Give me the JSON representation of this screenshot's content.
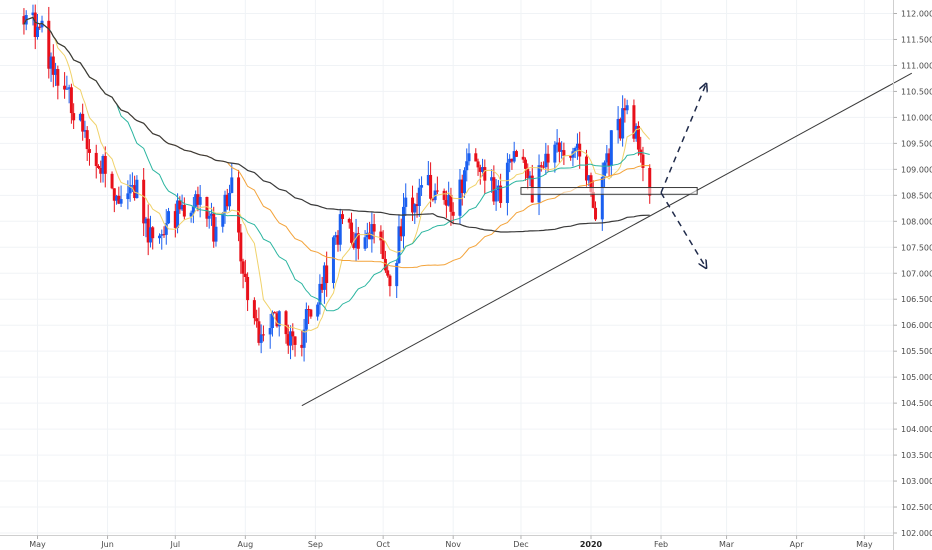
{
  "chart_data": {
    "type": "candlestick",
    "y_axis": {
      "range": [
        102.0,
        112.3
      ],
      "ticks": [
        "112.000",
        "111.500",
        "111.000",
        "110.500",
        "110.000",
        "109.500",
        "109.000",
        "108.500",
        "108.000",
        "107.500",
        "107.000",
        "106.500",
        "106.000",
        "105.500",
        "105.000",
        "104.500",
        "104.000",
        "103.500",
        "103.000",
        "102.500",
        "102.000"
      ]
    },
    "x_axis": {
      "labels": [
        {
          "text": "May",
          "bold": false
        },
        {
          "text": "Jun",
          "bold": false
        },
        {
          "text": "Jul",
          "bold": false
        },
        {
          "text": "Aug",
          "bold": false
        },
        {
          "text": "Sep",
          "bold": false
        },
        {
          "text": "Oct",
          "bold": false
        },
        {
          "text": "Nov",
          "bold": false
        },
        {
          "text": "Dec",
          "bold": false
        },
        {
          "text": "2020",
          "bold": true
        },
        {
          "text": "Feb",
          "bold": false
        },
        {
          "text": "Mar",
          "bold": false
        },
        {
          "text": "Apr",
          "bold": false
        },
        {
          "text": "May",
          "bold": false
        }
      ]
    },
    "grid": true,
    "colors": {
      "up": "#1a5ff0",
      "down": "#e8101a",
      "ma_fast": "#f0d26a",
      "ma_mid": "#2bb5a0",
      "ma_slow": "#f3a33a",
      "ma_long": "#3a3a3a",
      "annotation": "#1f2a4a"
    },
    "close_path": [
      [
        "2019-04-25",
        111.95
      ],
      [
        "2019-05-03",
        111.6
      ],
      [
        "2019-05-10",
        110.6
      ],
      [
        "2019-05-17",
        110.2
      ],
      [
        "2019-05-24",
        109.5
      ],
      [
        "2019-05-31",
        108.9
      ],
      [
        "2019-06-07",
        108.3
      ],
      [
        "2019-06-14",
        108.6
      ],
      [
        "2019-06-21",
        107.5
      ],
      [
        "2019-06-28",
        108.0
      ],
      [
        "2019-07-05",
        108.3
      ],
      [
        "2019-07-12",
        108.3
      ],
      [
        "2019-07-19",
        107.8
      ],
      [
        "2019-07-26",
        108.7
      ],
      [
        "2019-08-02",
        106.6
      ],
      [
        "2019-08-09",
        105.6
      ],
      [
        "2019-08-16",
        106.3
      ],
      [
        "2019-08-23",
        105.4
      ],
      [
        "2019-08-30",
        106.3
      ],
      [
        "2019-09-06",
        107.0
      ],
      [
        "2019-09-13",
        108.1
      ],
      [
        "2019-09-20",
        107.6
      ],
      [
        "2019-09-27",
        107.9
      ],
      [
        "2019-10-04",
        106.8
      ],
      [
        "2019-10-11",
        108.3
      ],
      [
        "2019-10-18",
        108.6
      ],
      [
        "2019-10-25",
        108.7
      ],
      [
        "2019-11-01",
        108.2
      ],
      [
        "2019-11-08",
        109.2
      ],
      [
        "2019-11-15",
        108.7
      ],
      [
        "2019-11-22",
        108.6
      ],
      [
        "2019-11-29",
        109.4
      ],
      [
        "2019-12-06",
        108.6
      ],
      [
        "2019-12-13",
        109.4
      ],
      [
        "2019-12-20",
        109.4
      ],
      [
        "2019-12-27",
        109.4
      ],
      [
        "2020-01-03",
        108.1
      ],
      [
        "2020-01-10",
        109.5
      ],
      [
        "2020-01-17",
        110.1
      ],
      [
        "2020-01-24",
        109.2
      ],
      [
        "2020-01-27",
        108.7
      ]
    ],
    "annotations": {
      "support_trendline": {
        "from": [
          "2019-08-26",
          104.45
        ],
        "to": [
          "2020-05-22",
          110.85
        ]
      },
      "resistance_zone": {
        "from_date": "2019-12-01",
        "to_date": "2020-02-17",
        "top": 108.65,
        "bottom": 108.52
      },
      "projection_up": {
        "from": [
          "2020-02-01",
          108.55
        ],
        "to": [
          "2020-02-21",
          110.65
        ]
      },
      "projection_down": {
        "from": [
          "2020-02-01",
          108.55
        ],
        "to": [
          "2020-02-21",
          107.1
        ]
      }
    }
  }
}
